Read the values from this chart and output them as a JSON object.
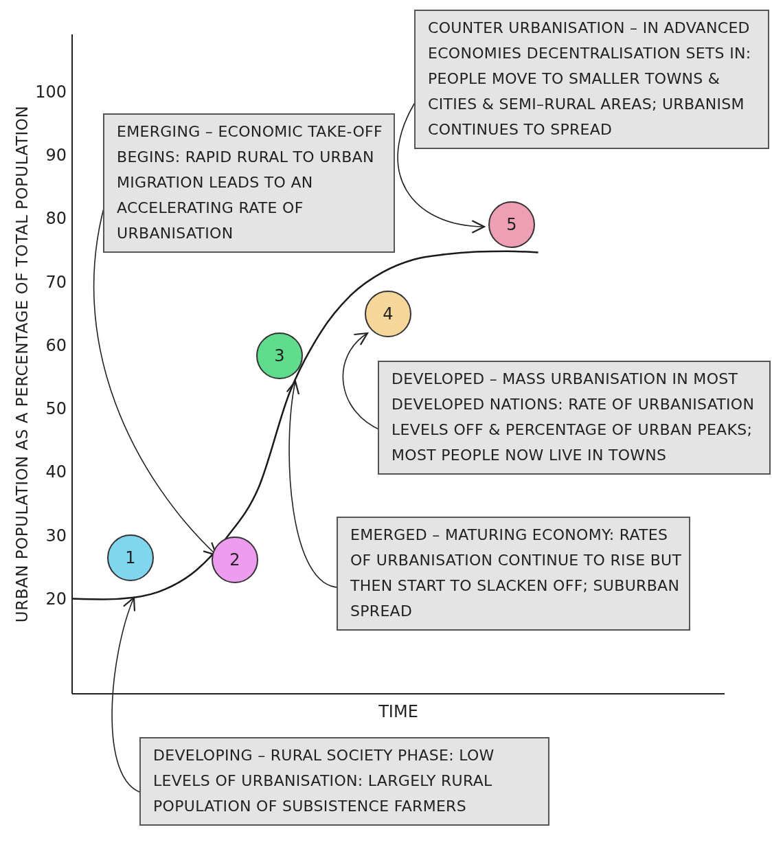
{
  "chart_data": {
    "type": "line",
    "xlabel": "TIME",
    "ylabel": "URBAN POPULATION AS A PERCENTAGE OF TOTAL POPULATION",
    "categories": [
      null,
      null,
      null,
      null,
      null,
      null,
      null,
      null,
      null,
      null,
      null,
      null,
      null,
      null,
      null,
      null,
      null,
      null,
      null,
      null,
      null,
      null
    ],
    "values": [
      20,
      19.9,
      20.2,
      21.5,
      24.5,
      29.8,
      37.5,
      52.5,
      62,
      68,
      71.5,
      73.5,
      74.3,
      74.7,
      74.8,
      74.6,
      null,
      null,
      null,
      null,
      null,
      null
    ],
    "color": "#1a1a1a",
    "ylim": [
      5,
      109
    ],
    "yticks": [
      20,
      30,
      40,
      50,
      60,
      70,
      80,
      90,
      100
    ],
    "tick_labels": "y",
    "marker": "none",
    "line_style": "solid",
    "legend": false,
    "annotations": [
      "1",
      "2",
      "3",
      "4",
      "5",
      "EMERGING – ECONOMIC TAKE-OFF BEGINS: RAPID RURAL TO URBAN MIGRATION LEADS TO AN ACCELERATING RATE OF URBANISATION",
      "COUNTER URBANISATION – IN ADVANCED ECONOMIES DECENTRALISATION SETS IN: PEOPLE MOVE TO SMALLER TOWNS & CITIES & SEMI–RURAL AREAS; URBANISM CONTINUES TO SPREAD",
      "DEVELOPED – MASS URBANISATION IN MOST DEVELOPED NATIONS: RATE OF URBANISATION LEVELS OFF & PERCENTAGE OF URBAN PEAKS; MOST PEOPLE NOW LIVE IN TOWNS",
      "EMERGED – MATURING ECONOMY: RATES OF URBANISATION CONTINUE TO RISE BUT THEN START TO SLACKEN OFF; SUBURBAN SPREAD",
      "DEVELOPING – RURAL SOCIETY PHASE: LOW LEVELS OF URBANISATION: LARGELY RURAL POPULATION OF SUBSISTENCE FARMERS"
    ]
  }
}
